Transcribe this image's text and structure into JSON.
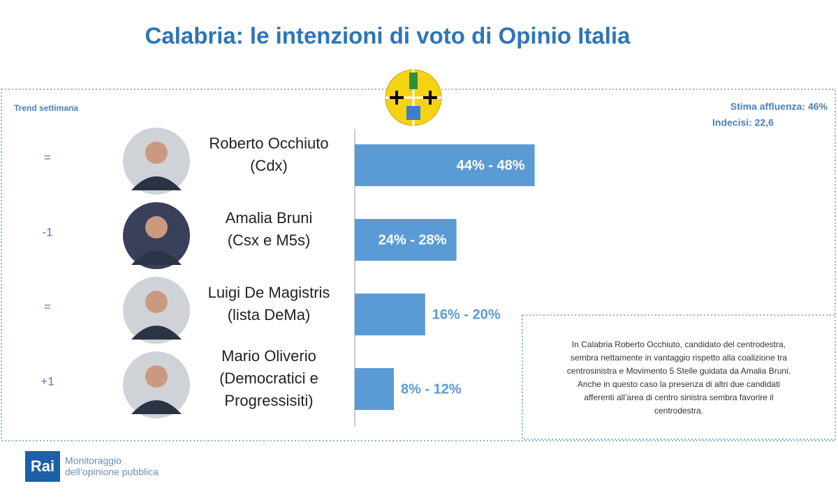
{
  "chart_data": {
    "type": "bar",
    "title": "Calabria: le intenzioni di voto di Opinio Italia",
    "trend_label": "Trend settimana",
    "categories": [
      [
        "Roberto Occhiuto",
        "(Cdx)"
      ],
      [
        "Amalia Bruni",
        "(Csx e M5s)"
      ],
      [
        "Luigi De Magistris",
        "(lista DeMa)"
      ],
      [
        "Mario Oliverio",
        "(Democratici e",
        "Progressisiti)"
      ]
    ],
    "trend": [
      "=",
      "-1",
      "=",
      "+1"
    ],
    "low": [
      44,
      24,
      16,
      8
    ],
    "high": [
      48,
      28,
      20,
      12
    ],
    "value_labels": [
      "44% - 48%",
      "24% - 28%",
      "16% - 20%",
      "8% - 12%"
    ],
    "color": "#5b9bd5",
    "annotations": {
      "turnout": "Stima affluenza: 46%",
      "undecided": "Indecisi: 22,6",
      "note": [
        "In Calabria Roberto Occhiuto, candidato del centrodestra,",
        "sembra nettamente in vantaggio rispetto alla coalizione tra",
        "centrosinistra e Movimento 5 Stelle guidata da Amalia Bruni.",
        "Anche in questo caso la presenza di altri due candidati",
        "afferenti all’area di centro sinistra sembra favorire il",
        "centrodestra."
      ]
    }
  },
  "footer": {
    "logo": "Rai",
    "lines": [
      "Monitoraggio",
      "dell’opinione pubblica"
    ]
  }
}
